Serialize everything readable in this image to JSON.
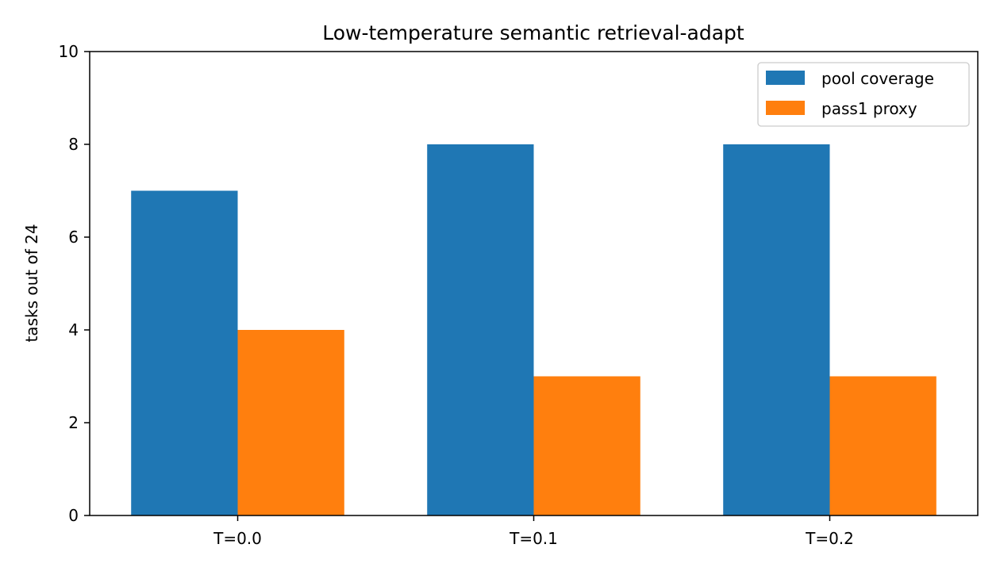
{
  "chart_data": {
    "type": "bar",
    "title": "Low-temperature semantic retrieval-adapt",
    "xlabel": "",
    "ylabel": "tasks out of 24",
    "categories": [
      "T=0.0",
      "T=0.1",
      "T=0.2"
    ],
    "series": [
      {
        "name": "pool coverage",
        "values": [
          7,
          8,
          8
        ],
        "color": "#1f77b4"
      },
      {
        "name": "pass1 proxy",
        "values": [
          4,
          3,
          3
        ],
        "color": "#ff7f0e"
      }
    ],
    "ylim": [
      0,
      10
    ],
    "yticks": [
      0,
      2,
      4,
      6,
      8,
      10
    ],
    "grid": false,
    "legend_position": "top-right"
  }
}
